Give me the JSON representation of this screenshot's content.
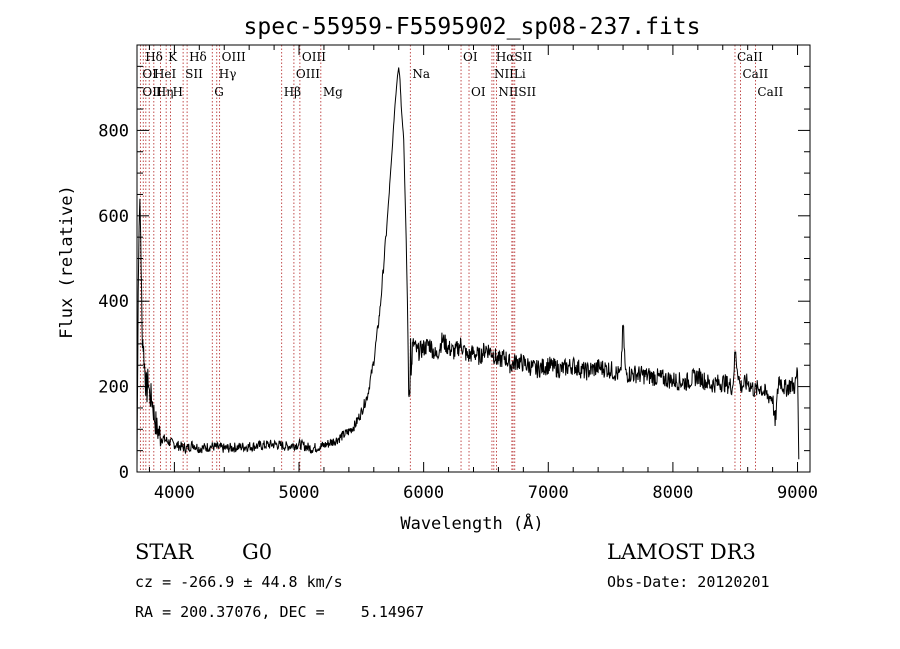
{
  "chart_data": {
    "type": "line",
    "title": "spec-55959-F5595902_sp08-237.fits",
    "xlabel": "Wavelength (Å)",
    "ylabel": "Flux (relative)",
    "xlim": [
      3700,
      9100
    ],
    "ylim": [
      0,
      1000
    ],
    "xticks": [
      4000,
      5000,
      6000,
      7000,
      8000,
      9000
    ],
    "yticks": [
      0,
      200,
      400,
      600,
      800
    ],
    "grid": false,
    "series": [
      {
        "name": "flux",
        "x": [
          3700,
          3710,
          3720,
          3730,
          3740,
          3750,
          3760,
          3770,
          3780,
          3790,
          3800,
          3820,
          3840,
          3860,
          3880,
          3900,
          3930,
          3960,
          4000,
          4050,
          4100,
          4150,
          4200,
          4300,
          4400,
          4500,
          4600,
          4700,
          4800,
          4900,
          5000,
          5100,
          5200,
          5300,
          5400,
          5450,
          5500,
          5550,
          5600,
          5650,
          5700,
          5740,
          5770,
          5790,
          5800,
          5810,
          5820,
          5840,
          5860,
          5870,
          5880,
          5890,
          5895,
          5900,
          5910,
          5920,
          5950,
          6000,
          6050,
          6100,
          6150,
          6200,
          6250,
          6300,
          6350,
          6400,
          6450,
          6500,
          6550,
          6600,
          6650,
          6700,
          6750,
          6800,
          6900,
          7000,
          7100,
          7200,
          7300,
          7400,
          7500,
          7580,
          7600,
          7620,
          7700,
          7800,
          7900,
          8000,
          8100,
          8200,
          8300,
          8400,
          8480,
          8500,
          8520,
          8540,
          8600,
          8660,
          8700,
          8750,
          8800,
          8820,
          8850,
          8900,
          8950,
          8980,
          9000,
          9010
        ],
        "values": [
          10,
          440,
          640,
          560,
          330,
          300,
          250,
          210,
          190,
          220,
          180,
          170,
          130,
          100,
          90,
          80,
          75,
          70,
          65,
          60,
          55,
          65,
          55,
          60,
          55,
          58,
          60,
          62,
          65,
          60,
          65,
          55,
          62,
          75,
          95,
          110,
          140,
          180,
          260,
          380,
          560,
          720,
          860,
          930,
          950,
          920,
          860,
          780,
          540,
          400,
          180,
          200,
          330,
          220,
          290,
          300,
          280,
          290,
          300,
          270,
          310,
          290,
          280,
          300,
          270,
          280,
          270,
          290,
          280,
          260,
          270,
          250,
          260,
          255,
          240,
          250,
          240,
          250,
          235,
          245,
          240,
          225,
          345,
          230,
          230,
          225,
          220,
          215,
          210,
          225,
          205,
          210,
          200,
          280,
          240,
          200,
          210,
          190,
          200,
          180,
          175,
          110,
          220,
          195,
          205,
          200,
          240,
          30
        ]
      }
    ],
    "line_labels": [
      {
        "text": "Hδ",
        "x": 3750,
        "row": 1
      },
      {
        "text": "K",
        "x": 3934,
        "row": 1
      },
      {
        "text": "Hδ",
        "x": 4102,
        "row": 1
      },
      {
        "text": "OIII",
        "x": 4363,
        "row": 1
      },
      {
        "text": "OIII",
        "x": 5007,
        "row": 1
      },
      {
        "text": "OI",
        "x": 6300,
        "row": 1
      },
      {
        "text": "HαSII",
        "x": 6563,
        "row": 1
      },
      {
        "text": "CaII",
        "x": 8498,
        "row": 1
      },
      {
        "text": "OI",
        "x": 3727,
        "row": 2
      },
      {
        "text": "HeI",
        "x": 3820,
        "row": 2
      },
      {
        "text": "SII",
        "x": 4070,
        "row": 2
      },
      {
        "text": "Hγ",
        "x": 4340,
        "row": 2
      },
      {
        "text": "OIII",
        "x": 4959,
        "row": 2
      },
      {
        "text": "Na",
        "x": 5893,
        "row": 2
      },
      {
        "text": "NII",
        "x": 6548,
        "row": 2
      },
      {
        "text": "Li",
        "x": 6708,
        "row": 2
      },
      {
        "text": "CaII",
        "x": 8542,
        "row": 2
      },
      {
        "text": "OII",
        "x": 3727,
        "row": 3
      },
      {
        "text": "Hη",
        "x": 3835,
        "row": 3
      },
      {
        "text": "H",
        "x": 3969,
        "row": 3
      },
      {
        "text": "G",
        "x": 4304,
        "row": 3
      },
      {
        "text": "Hβ",
        "x": 4861,
        "row": 3
      },
      {
        "text": "Mg",
        "x": 5175,
        "row": 3
      },
      {
        "text": "OI",
        "x": 6364,
        "row": 3
      },
      {
        "text": "NIISII",
        "x": 6584,
        "row": 3
      },
      {
        "text": "CaII",
        "x": 8662,
        "row": 3
      }
    ],
    "line_positions": [
      3727,
      3750,
      3771,
      3798,
      3835,
      3889,
      3934,
      3969,
      4070,
      4102,
      4304,
      4340,
      4363,
      4861,
      4959,
      5007,
      5175,
      5893,
      6300,
      6364,
      6548,
      6563,
      6584,
      6708,
      6717,
      6731,
      8498,
      8542,
      8662
    ]
  },
  "info": {
    "class_label": "STAR",
    "subclass": "G0",
    "survey": "LAMOST DR3",
    "cz_text": "cz = -266.9 ± 44.8 km/s",
    "obs_date": "Obs-Date: 20120201",
    "radec": "RA = 200.37076, DEC =    5.14967"
  }
}
